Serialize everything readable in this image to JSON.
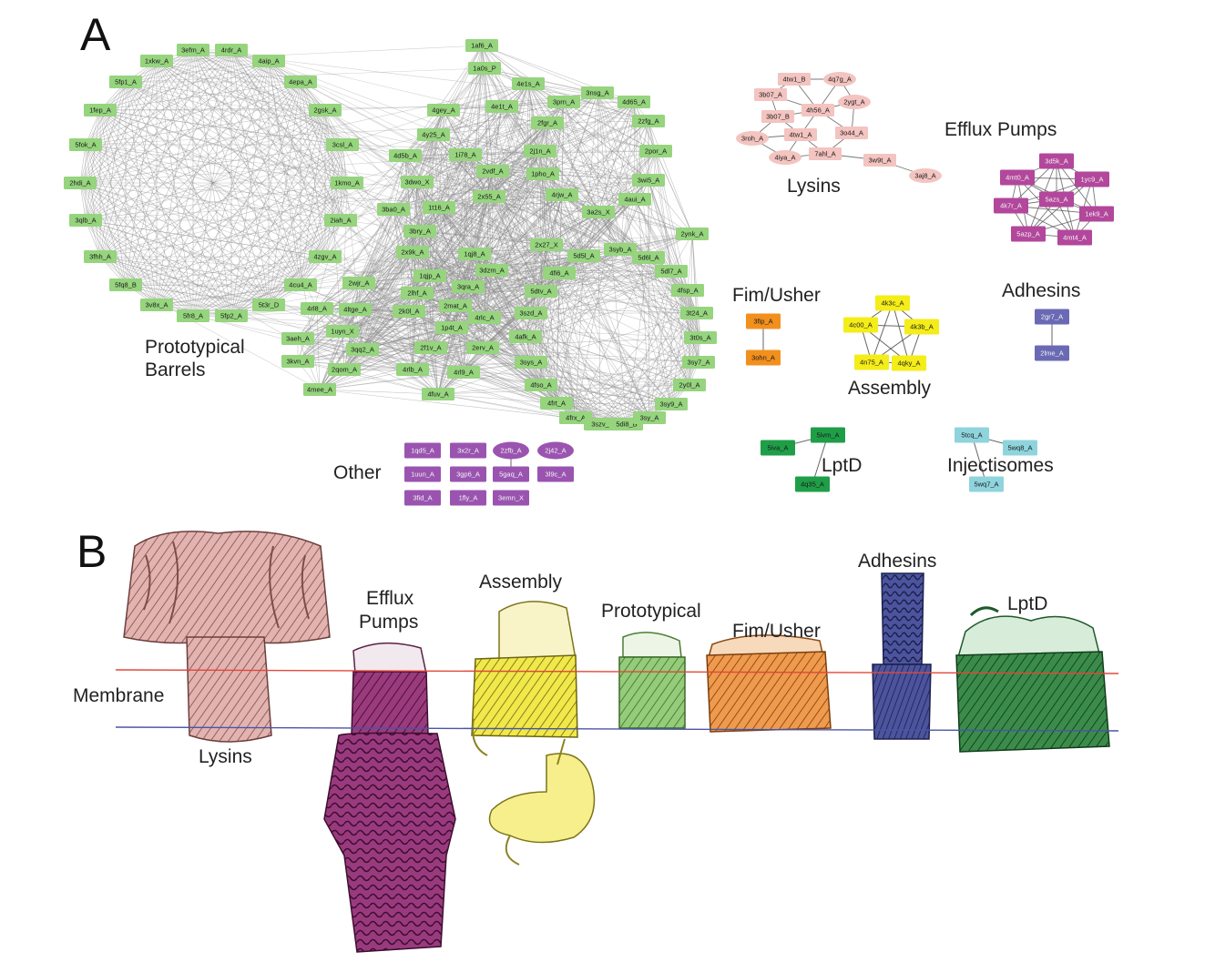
{
  "panel_a": {
    "letter": "A",
    "group_labels": {
      "prototypical_barrels": [
        "Prototypical",
        "Barrels"
      ],
      "other": "Other",
      "lysins": "Lysins",
      "efflux_pumps": "Efflux Pumps",
      "fim_usher": "Fim/Usher",
      "assembly": "Assembly",
      "adhesins": "Adhesins",
      "lptd": "LptD",
      "injectisomes": "Injectisomes"
    },
    "colors": {
      "prototypical": "#96d47e",
      "lysins": "#f3c4c0",
      "efflux": "#b2479c",
      "fim_usher": "#f2901e",
      "assembly": "#f4ed1a",
      "adhesins": "#6a6ab4",
      "lptd": "#1f9e48",
      "injectisomes": "#8fd4dd",
      "other": "#9a54b0",
      "edge": "#8a8a8a"
    },
    "nodes": {
      "prototypical": [
        "1xkw_A",
        "3efm_A",
        "4rdr_A",
        "4aip_A",
        "5fp1_A",
        "4epa_A",
        "1fep_A",
        "2gsk_A",
        "5fok_A",
        "3csl_A",
        "2hdi_A",
        "1kmo_A",
        "3qlb_A",
        "2iah_A",
        "3fhh_A",
        "4zgv_A",
        "5fq8_B",
        "4cu4_A",
        "3v8x_A",
        "5fr8_A",
        "5fp2_A",
        "5t3r_D",
        "1af6_A",
        "1a0s_P",
        "4e1s_A",
        "3nsg_A",
        "4gey_A",
        "4e1t_A",
        "3prn_A",
        "4d65_A",
        "4y25_A",
        "2fgr_A",
        "2zfg_A",
        "4d5b_A",
        "1i78_A",
        "2j1n_A",
        "2por_A",
        "2vdf_A",
        "1pho_A",
        "3wi5_A",
        "3dwo_X",
        "2x55_A",
        "4rjw_A",
        "4aui_A",
        "3ba0_A",
        "1t16_A",
        "3a2s_X",
        "2ynk_A",
        "3bry_A",
        "2x27_X",
        "3syb_A",
        "2x9k_A",
        "1qj8_A",
        "5d5l_A",
        "5d6l_A",
        "5dl7_A",
        "3dzm_A",
        "4fi6_A",
        "2wjr_A",
        "1qjp_A",
        "3qra_A",
        "4fsp_A",
        "4rl8_A",
        "4ltge_A",
        "2lhf_A",
        "5dtv_A",
        "2mat_A",
        "3szd_A",
        "3t24_A",
        "2k0l_A",
        "4rlc_A",
        "1uyn_X",
        "4afk_A",
        "3t0s_A",
        "3aeh_A",
        "3qq2_A",
        "1p4t_A",
        "2erv_A",
        "3kvn_A",
        "2qom_A",
        "2f1v_A",
        "3sys_A",
        "3sy7_A",
        "4rlb_A",
        "4rl9_A",
        "4fso_A",
        "2y0l_A",
        "4mee_A",
        "4fuv_A",
        "4frt_A",
        "3sy9_A",
        "4frx_A",
        "3szv_",
        "5di8_B",
        "3sy_A"
      ],
      "lysins": [
        "4tw1_B",
        "4q7g_A",
        "3b07_A",
        "4h56_A",
        "2ygt_A",
        "3b07_B",
        "4tw1_A",
        "3o44_A",
        "3roh_A",
        "7ahl_A",
        "4iya_A",
        "3w9t_A",
        "3aj8_A"
      ],
      "efflux": [
        "3d5k_A",
        "4mt0_A",
        "1yc9_A",
        "5azs_A",
        "4k7r_A",
        "1ek9_A",
        "5azp_A",
        "4mt4_A"
      ],
      "fim_usher": [
        "3fip_A",
        "3ohn_A"
      ],
      "assembly": [
        "4k3c_A",
        "4c00_A",
        "4k3b_A",
        "4n75_A",
        "4qky_A"
      ],
      "adhesins": [
        "2gr7_A",
        "2lme_A"
      ],
      "lptd": [
        "5iva_A",
        "5ivm_A",
        "4q35_A"
      ],
      "injectisomes": [
        "5tcq_A",
        "5wq8_A",
        "5wq7_A"
      ],
      "other": [
        "1qd5_A",
        "3x2r_A",
        "2zfb_A",
        "2j42_A",
        "1uun_A",
        "3gp6_A",
        "5gaq_A",
        "3l9c_A",
        "3fid_A",
        "1fly_A",
        "3emn_X"
      ]
    }
  },
  "panel_b": {
    "letter": "B",
    "labels": {
      "membrane": "Membrane",
      "lysins": "Lysins",
      "efflux": [
        "Efflux",
        "Pumps"
      ],
      "assembly": "Assembly",
      "prototypical": "Prototypical",
      "fim_usher": "Fim/Usher",
      "adhesins": "Adhesins",
      "lptd": "LptD"
    },
    "membrane_colors": {
      "outer": "#e0483a",
      "inner": "#4a55a8"
    },
    "structure_colors": {
      "lysins": "#d9a3a1",
      "efflux": "#8a2a6c",
      "assembly": "#ece33a",
      "prototypical": "#86c26a",
      "fim_usher": "#e8893a",
      "adhesins": "#3f468f",
      "lptd": "#2a7a3c"
    }
  }
}
